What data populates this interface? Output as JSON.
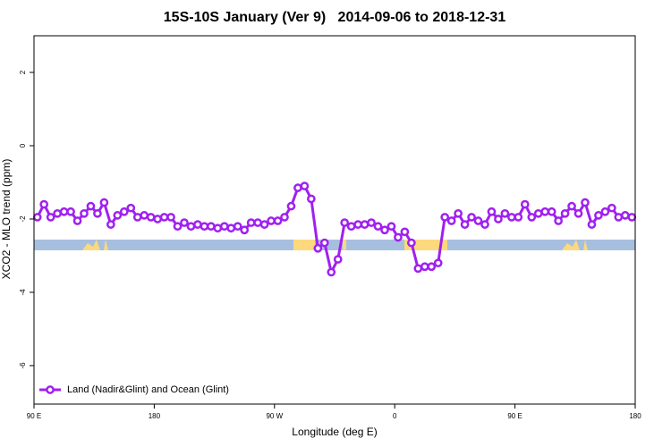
{
  "chart_data": {
    "type": "line",
    "title": "15S-10S January (Ver 9)   2014-09-06 to 2018-12-31",
    "x_label": "Longitude (deg E)",
    "y_label": "XCO2 - MLO trend (ppm)",
    "xlim": [
      90,
      540
    ],
    "ylim": [
      -7.05,
      3
    ],
    "xticks": [
      {
        "value": 90,
        "label": "90 E"
      },
      {
        "value": 180,
        "label": "180"
      },
      {
        "value": 270,
        "label": "90 W"
      },
      {
        "value": 360,
        "label": "0"
      },
      {
        "value": 450,
        "label": "90 E"
      },
      {
        "value": 540,
        "label": "180"
      }
    ],
    "yticks": [
      2,
      0,
      -2,
      -4,
      -6
    ],
    "legend": "bottom-left",
    "x": [
      92.5,
      97.5,
      102.5,
      107.5,
      112.5,
      117.5,
      122.5,
      127.5,
      132.5,
      137.5,
      142.5,
      147.5,
      152.5,
      157.5,
      162.5,
      167.5,
      172.5,
      177.5,
      182.5,
      187.5,
      192.5,
      197.5,
      202.5,
      207.5,
      212.5,
      217.5,
      222.5,
      227.5,
      232.5,
      237.5,
      242.5,
      247.5,
      252.5,
      257.5,
      262.5,
      267.5,
      272.5,
      277.5,
      282.5,
      287.5,
      292.5,
      297.5,
      302.5,
      307.5,
      312.5,
      317.5,
      322.5,
      327.5,
      332.5,
      337.5,
      342.5,
      347.5,
      352.5,
      357.5,
      362.5,
      367.5,
      372.5,
      377.5,
      382.5,
      387.5,
      392.5,
      397.5,
      402.5,
      407.5,
      412.5,
      417.5,
      422.5,
      427.5,
      432.5,
      437.5,
      442.5,
      447.5,
      452.5,
      457.5,
      462.5,
      467.5,
      472.5,
      477.5,
      482.5,
      487.5,
      492.5,
      497.5,
      502.5,
      507.5,
      512.5,
      517.5,
      522.5,
      527.5,
      532.5,
      537.5
    ],
    "series": [
      {
        "name": "Land (Nadir&Glint) and Ocean (Glint)",
        "color": "#a020f0",
        "values": [
          -1.95,
          -1.6,
          -1.95,
          -1.85,
          -1.8,
          -1.8,
          -2.05,
          -1.85,
          -1.65,
          -1.85,
          -1.55,
          -2.15,
          -1.9,
          -1.8,
          -1.7,
          -1.95,
          -1.9,
          -1.95,
          -2.0,
          -1.95,
          -1.95,
          -2.2,
          -2.1,
          -2.2,
          -2.15,
          -2.2,
          -2.2,
          -2.25,
          -2.2,
          -2.25,
          -2.2,
          -2.3,
          -2.1,
          -2.1,
          -2.15,
          -2.05,
          -2.05,
          -1.95,
          -1.65,
          -1.15,
          -1.1,
          -1.45,
          -2.8,
          -2.65,
          -3.45,
          -3.1,
          -2.1,
          -2.2,
          -2.15,
          -2.15,
          -2.1,
          -2.2,
          -2.3,
          -2.2,
          -2.5,
          -2.35,
          -2.65,
          -3.35,
          -3.3,
          -3.3,
          -3.2,
          -1.95,
          -2.05,
          -1.85,
          -2.15,
          -1.95,
          -2.05,
          -2.15,
          -1.8,
          -2.0,
          -1.85,
          -1.95,
          -1.95,
          -1.6,
          -1.95,
          -1.85,
          -1.8,
          -1.8,
          -2.05,
          -1.85,
          -1.65,
          -1.85,
          -1.55,
          -2.15,
          -1.9,
          -1.8,
          -1.7,
          -1.95,
          -1.9,
          -1.95
        ]
      }
    ]
  }
}
